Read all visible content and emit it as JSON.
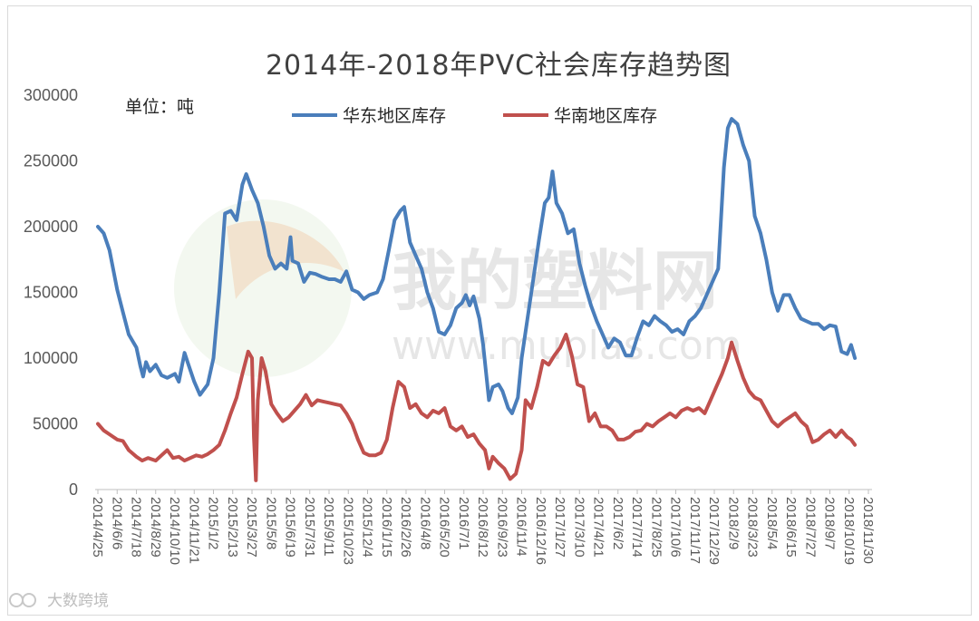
{
  "chart_data": {
    "type": "line",
    "title": "2014年-2018年PVC社会库存趋势图",
    "unit_label": "单位：吨",
    "xlabel": "",
    "ylabel": "",
    "ylim": [
      0,
      300000
    ],
    "yticks": [
      "0",
      "50000",
      "100000",
      "150000",
      "200000",
      "250000",
      "300000"
    ],
    "grid": false,
    "legend_position": "top",
    "x_labels": [
      "2014/4/25",
      "2014/6/6",
      "2014/7/18",
      "2014/8/29",
      "2014/10/10",
      "2014/11/21",
      "2015/1/2",
      "2015/2/13",
      "2015/3/27",
      "2015/5/8",
      "2015/6/19",
      "2015/7/31",
      "2015/9/11",
      "2015/10/23",
      "2015/12/4",
      "2016/1/15",
      "2016/2/26",
      "2016/4/8",
      "2016/5/20",
      "2016/7/1",
      "2016/8/12",
      "2016/9/23",
      "2016/11/4",
      "2016/12/16",
      "2017/1/27",
      "2017/3/10",
      "2017/4/21",
      "2017/6/2",
      "2017/7/14",
      "2017/8/25",
      "2017/10/6",
      "2017/11/17",
      "2017/12/29",
      "2018/2/9",
      "2018/3/23",
      "2018/5/4",
      "2018/6/15",
      "2018/7/27",
      "2018/9/7",
      "2018/10/19",
      "2018/11/30"
    ],
    "series": [
      {
        "name": "华东地区库存",
        "color": "#4a7ebb",
        "points": [
          [
            0,
            200000
          ],
          [
            0.3,
            195000
          ],
          [
            0.6,
            182000
          ],
          [
            1.0,
            152000
          ],
          [
            1.3,
            135000
          ],
          [
            1.6,
            118000
          ],
          [
            2.0,
            108000
          ],
          [
            2.2,
            94000
          ],
          [
            2.35,
            86000
          ],
          [
            2.5,
            97000
          ],
          [
            2.7,
            90000
          ],
          [
            3.0,
            95000
          ],
          [
            3.3,
            87000
          ],
          [
            3.6,
            85000
          ],
          [
            4.0,
            88000
          ],
          [
            4.2,
            82000
          ],
          [
            4.5,
            104000
          ],
          [
            4.7,
            95000
          ],
          [
            5.0,
            82000
          ],
          [
            5.3,
            72000
          ],
          [
            5.7,
            80000
          ],
          [
            6.0,
            100000
          ],
          [
            6.3,
            150000
          ],
          [
            6.6,
            210000
          ],
          [
            6.9,
            212000
          ],
          [
            7.2,
            205000
          ],
          [
            7.5,
            232000
          ],
          [
            7.7,
            240000
          ],
          [
            8.0,
            228000
          ],
          [
            8.3,
            218000
          ],
          [
            8.6,
            200000
          ],
          [
            8.9,
            178000
          ],
          [
            9.2,
            168000
          ],
          [
            9.5,
            172000
          ],
          [
            9.8,
            168000
          ],
          [
            10.0,
            192000
          ],
          [
            10.1,
            174000
          ],
          [
            10.4,
            172000
          ],
          [
            10.7,
            158000
          ],
          [
            11.0,
            165000
          ],
          [
            11.3,
            164000
          ],
          [
            11.6,
            162000
          ],
          [
            12.0,
            160000
          ],
          [
            12.3,
            160000
          ],
          [
            12.6,
            158000
          ],
          [
            12.9,
            166000
          ],
          [
            13.2,
            152000
          ],
          [
            13.5,
            150000
          ],
          [
            13.8,
            145000
          ],
          [
            14.1,
            148000
          ],
          [
            14.5,
            150000
          ],
          [
            14.8,
            160000
          ],
          [
            15.1,
            182000
          ],
          [
            15.4,
            205000
          ],
          [
            15.7,
            212000
          ],
          [
            15.9,
            215000
          ],
          [
            16.2,
            188000
          ],
          [
            16.5,
            178000
          ],
          [
            16.8,
            168000
          ],
          [
            17.1,
            150000
          ],
          [
            17.4,
            138000
          ],
          [
            17.7,
            120000
          ],
          [
            18.0,
            118000
          ],
          [
            18.3,
            125000
          ],
          [
            18.6,
            138000
          ],
          [
            18.9,
            142000
          ],
          [
            19.1,
            148000
          ],
          [
            19.3,
            140000
          ],
          [
            19.5,
            147000
          ],
          [
            19.8,
            130000
          ],
          [
            20.0,
            110000
          ],
          [
            20.3,
            68000
          ],
          [
            20.5,
            78000
          ],
          [
            20.8,
            80000
          ],
          [
            21.0,
            75000
          ],
          [
            21.3,
            62000
          ],
          [
            21.5,
            58000
          ],
          [
            21.8,
            70000
          ],
          [
            22.0,
            100000
          ],
          [
            22.3,
            130000
          ],
          [
            22.6,
            160000
          ],
          [
            22.9,
            190000
          ],
          [
            23.2,
            218000
          ],
          [
            23.4,
            222000
          ],
          [
            23.6,
            242000
          ],
          [
            23.8,
            218000
          ],
          [
            24.1,
            210000
          ],
          [
            24.4,
            195000
          ],
          [
            24.7,
            198000
          ],
          [
            25.0,
            172000
          ],
          [
            25.3,
            155000
          ],
          [
            25.6,
            140000
          ],
          [
            25.9,
            128000
          ],
          [
            26.2,
            118000
          ],
          [
            26.5,
            108000
          ],
          [
            26.8,
            115000
          ],
          [
            27.1,
            112000
          ],
          [
            27.4,
            102000
          ],
          [
            27.7,
            102000
          ],
          [
            28.0,
            116000
          ],
          [
            28.3,
            128000
          ],
          [
            28.6,
            125000
          ],
          [
            28.9,
            132000
          ],
          [
            29.2,
            128000
          ],
          [
            29.5,
            125000
          ],
          [
            29.8,
            120000
          ],
          [
            30.1,
            122000
          ],
          [
            30.4,
            118000
          ],
          [
            30.7,
            128000
          ],
          [
            31.0,
            132000
          ],
          [
            31.3,
            138000
          ],
          [
            31.6,
            148000
          ],
          [
            31.9,
            158000
          ],
          [
            32.2,
            168000
          ],
          [
            32.5,
            245000
          ],
          [
            32.7,
            275000
          ],
          [
            32.9,
            282000
          ],
          [
            33.2,
            278000
          ],
          [
            33.5,
            262000
          ],
          [
            33.8,
            250000
          ],
          [
            34.1,
            208000
          ],
          [
            34.4,
            195000
          ],
          [
            34.7,
            175000
          ],
          [
            35.0,
            150000
          ],
          [
            35.3,
            136000
          ],
          [
            35.6,
            148000
          ],
          [
            35.9,
            148000
          ],
          [
            36.2,
            138000
          ],
          [
            36.5,
            130000
          ],
          [
            36.8,
            128000
          ],
          [
            37.1,
            126000
          ],
          [
            37.4,
            126000
          ],
          [
            37.7,
            122000
          ],
          [
            38.0,
            125000
          ],
          [
            38.3,
            124000
          ],
          [
            38.6,
            105000
          ],
          [
            38.9,
            103000
          ],
          [
            39.1,
            110000
          ],
          [
            39.3,
            100000
          ]
        ]
      },
      {
        "name": "华南地区库存",
        "color": "#c0504d",
        "points": [
          [
            0,
            50000
          ],
          [
            0.3,
            45000
          ],
          [
            0.6,
            42000
          ],
          [
            1.0,
            38000
          ],
          [
            1.3,
            37000
          ],
          [
            1.6,
            30000
          ],
          [
            2.0,
            25000
          ],
          [
            2.3,
            22000
          ],
          [
            2.6,
            24000
          ],
          [
            3.0,
            22000
          ],
          [
            3.3,
            26000
          ],
          [
            3.6,
            30000
          ],
          [
            3.9,
            24000
          ],
          [
            4.2,
            25000
          ],
          [
            4.5,
            22000
          ],
          [
            4.8,
            24000
          ],
          [
            5.1,
            26000
          ],
          [
            5.4,
            25000
          ],
          [
            5.7,
            27000
          ],
          [
            6.0,
            30000
          ],
          [
            6.3,
            34000
          ],
          [
            6.6,
            45000
          ],
          [
            6.9,
            58000
          ],
          [
            7.2,
            70000
          ],
          [
            7.5,
            88000
          ],
          [
            7.8,
            105000
          ],
          [
            8.0,
            100000
          ],
          [
            8.1,
            40000
          ],
          [
            8.2,
            7000
          ],
          [
            8.3,
            68000
          ],
          [
            8.5,
            100000
          ],
          [
            8.7,
            90000
          ],
          [
            9.0,
            65000
          ],
          [
            9.3,
            58000
          ],
          [
            9.6,
            52000
          ],
          [
            9.9,
            55000
          ],
          [
            10.2,
            60000
          ],
          [
            10.5,
            65000
          ],
          [
            10.8,
            72000
          ],
          [
            11.1,
            64000
          ],
          [
            11.4,
            68000
          ],
          [
            11.7,
            67000
          ],
          [
            12.0,
            66000
          ],
          [
            12.3,
            65000
          ],
          [
            12.6,
            64000
          ],
          [
            12.9,
            58000
          ],
          [
            13.2,
            50000
          ],
          [
            13.5,
            38000
          ],
          [
            13.8,
            28000
          ],
          [
            14.1,
            26000
          ],
          [
            14.4,
            26000
          ],
          [
            14.7,
            28000
          ],
          [
            15.0,
            38000
          ],
          [
            15.3,
            62000
          ],
          [
            15.6,
            82000
          ],
          [
            15.9,
            78000
          ],
          [
            16.2,
            62000
          ],
          [
            16.5,
            65000
          ],
          [
            16.8,
            58000
          ],
          [
            17.1,
            55000
          ],
          [
            17.4,
            60000
          ],
          [
            17.7,
            58000
          ],
          [
            18.0,
            62000
          ],
          [
            18.3,
            48000
          ],
          [
            18.6,
            45000
          ],
          [
            18.9,
            48000
          ],
          [
            19.2,
            40000
          ],
          [
            19.5,
            42000
          ],
          [
            19.8,
            35000
          ],
          [
            20.1,
            30000
          ],
          [
            20.3,
            16000
          ],
          [
            20.5,
            25000
          ],
          [
            20.8,
            20000
          ],
          [
            21.1,
            16000
          ],
          [
            21.4,
            8000
          ],
          [
            21.7,
            12000
          ],
          [
            22.0,
            30000
          ],
          [
            22.2,
            68000
          ],
          [
            22.5,
            62000
          ],
          [
            22.8,
            78000
          ],
          [
            23.1,
            98000
          ],
          [
            23.4,
            95000
          ],
          [
            23.7,
            102000
          ],
          [
            24.0,
            108000
          ],
          [
            24.3,
            118000
          ],
          [
            24.6,
            102000
          ],
          [
            24.9,
            80000
          ],
          [
            25.2,
            78000
          ],
          [
            25.5,
            52000
          ],
          [
            25.8,
            58000
          ],
          [
            26.1,
            48000
          ],
          [
            26.4,
            48000
          ],
          [
            26.7,
            45000
          ],
          [
            27.0,
            38000
          ],
          [
            27.3,
            38000
          ],
          [
            27.6,
            40000
          ],
          [
            27.9,
            44000
          ],
          [
            28.2,
            45000
          ],
          [
            28.5,
            50000
          ],
          [
            28.8,
            48000
          ],
          [
            29.1,
            52000
          ],
          [
            29.4,
            55000
          ],
          [
            29.7,
            58000
          ],
          [
            30.0,
            55000
          ],
          [
            30.3,
            60000
          ],
          [
            30.6,
            62000
          ],
          [
            30.9,
            60000
          ],
          [
            31.2,
            62000
          ],
          [
            31.5,
            58000
          ],
          [
            31.8,
            68000
          ],
          [
            32.1,
            78000
          ],
          [
            32.4,
            88000
          ],
          [
            32.7,
            100000
          ],
          [
            32.9,
            112000
          ],
          [
            33.2,
            98000
          ],
          [
            33.5,
            85000
          ],
          [
            33.8,
            75000
          ],
          [
            34.1,
            70000
          ],
          [
            34.4,
            68000
          ],
          [
            34.7,
            60000
          ],
          [
            35.0,
            52000
          ],
          [
            35.3,
            48000
          ],
          [
            35.6,
            52000
          ],
          [
            35.9,
            55000
          ],
          [
            36.2,
            58000
          ],
          [
            36.5,
            52000
          ],
          [
            36.8,
            48000
          ],
          [
            37.1,
            36000
          ],
          [
            37.4,
            38000
          ],
          [
            37.7,
            42000
          ],
          [
            38.0,
            45000
          ],
          [
            38.3,
            40000
          ],
          [
            38.6,
            45000
          ],
          [
            38.9,
            40000
          ],
          [
            39.1,
            38000
          ],
          [
            39.3,
            34000
          ]
        ]
      }
    ],
    "legend": [
      "华东地区库存",
      "华南地区库存"
    ]
  },
  "watermark": {
    "brand": "我的塑料网",
    "url": "www.muplas.com"
  },
  "source_badge": "大数跨境"
}
